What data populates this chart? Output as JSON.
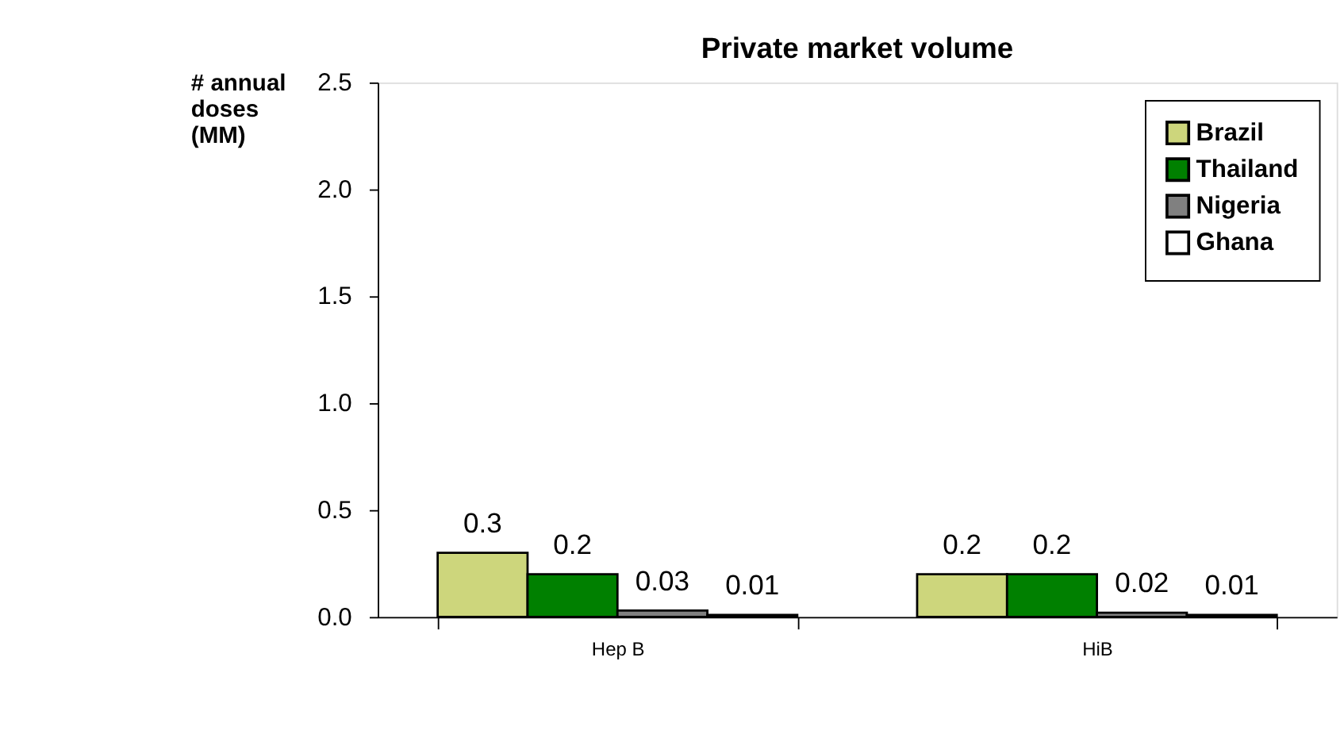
{
  "chart_data": {
    "type": "bar",
    "title": "Private market volume",
    "ylabel": "# annual\ndoses\n(MM)",
    "categories": [
      "Hep B",
      "HiB"
    ],
    "series": [
      {
        "name": "Brazil",
        "color": "#cdd67c",
        "values": [
          0.3,
          0.2
        ]
      },
      {
        "name": "Thailand",
        "color": "#008000",
        "values": [
          0.2,
          0.2
        ]
      },
      {
        "name": "Nigeria",
        "color": "#808080",
        "values": [
          0.03,
          0.02
        ]
      },
      {
        "name": "Ghana",
        "color": "#ffffff",
        "values": [
          0.01,
          0.01
        ]
      }
    ],
    "ylim": [
      0,
      2.5
    ],
    "yticks": [
      {
        "value": 0,
        "label": "0.0"
      },
      0.5,
      {
        "value": 1,
        "label": "1.0"
      },
      1.5,
      {
        "value": 2,
        "label": "2.0"
      },
      2.5
    ],
    "data_labels": true,
    "grid": false,
    "legend": "top right"
  }
}
